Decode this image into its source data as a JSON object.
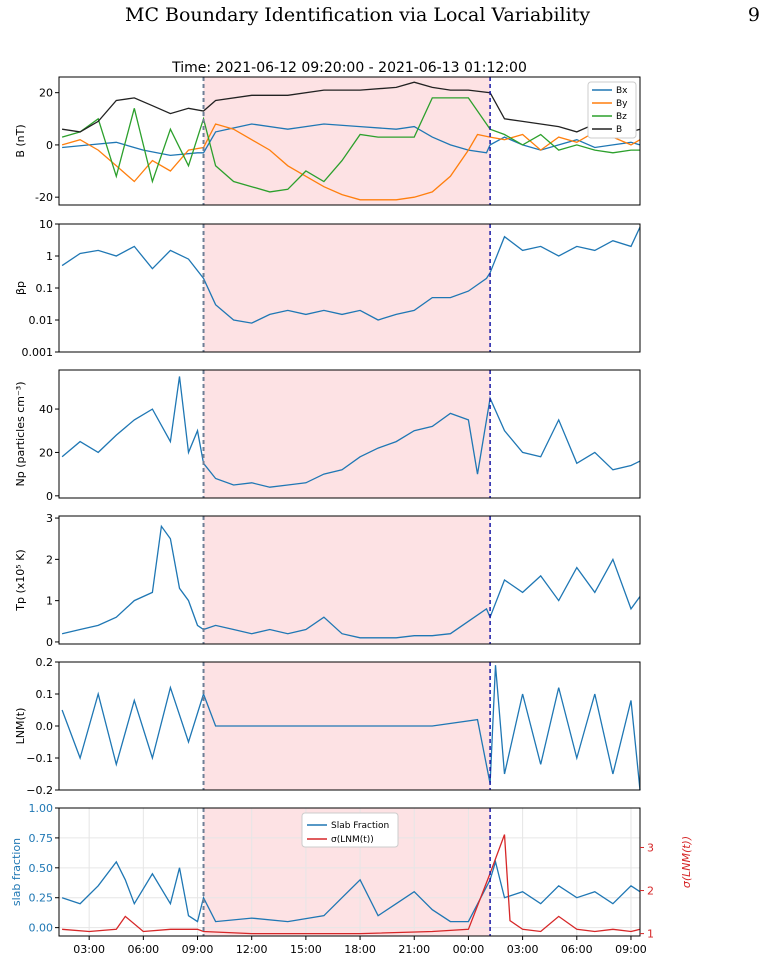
{
  "page": {
    "title": "MC Boundary Identification via Local Variability",
    "number": "9"
  },
  "chart_data": [
    {
      "type": "line",
      "title": "Time: 2021-06-12 09:20:00 - 2021-06-13 01:12:00",
      "ylabel": "B (nT)",
      "ylim": [
        -23,
        26
      ],
      "yticks": [
        20,
        0,
        -20
      ],
      "legend": {
        "placement": "top-right",
        "entries": [
          "Bx",
          "By",
          "Bz",
          "B"
        ]
      },
      "series": [
        {
          "name": "Bx",
          "color": "#1f77b4",
          "x": [
            1.5,
            3,
            4.5,
            6,
            7.5,
            9,
            9.33,
            10,
            12,
            14,
            16,
            18,
            20,
            21,
            22,
            23,
            24,
            25,
            25.2,
            26,
            27,
            28,
            29,
            30,
            31,
            32,
            33,
            33.5
          ],
          "y": [
            -1,
            0,
            1,
            -2,
            -4,
            -3,
            -3,
            5,
            8,
            6,
            8,
            7,
            6,
            7,
            3,
            0,
            -2,
            -3,
            0,
            3,
            0,
            -2,
            0,
            2,
            -1,
            0,
            1,
            0
          ]
        },
        {
          "name": "By",
          "color": "#ff7f0e",
          "x": [
            1.5,
            2.5,
            3.5,
            4.5,
            5.5,
            6.5,
            7.5,
            8.5,
            9.33,
            10,
            11,
            12,
            13,
            14,
            15,
            16,
            17,
            18,
            19,
            20,
            21,
            22,
            23,
            24,
            24.5,
            25.2,
            26,
            27,
            28,
            29,
            30,
            31,
            32,
            33,
            33.5
          ],
          "y": [
            0,
            2,
            -2,
            -8,
            -14,
            -6,
            -10,
            -2,
            -1,
            8,
            6,
            2,
            -2,
            -8,
            -12,
            -16,
            -19,
            -21,
            -21,
            -21,
            -20,
            -18,
            -12,
            -2,
            4,
            3,
            2,
            4,
            -2,
            3,
            1,
            5,
            3,
            0,
            2
          ]
        },
        {
          "name": "Bz",
          "color": "#2ca02c",
          "x": [
            1.5,
            2.5,
            3.5,
            4.5,
            5.5,
            6.5,
            7.5,
            8.5,
            9.33,
            10,
            11,
            12,
            13,
            14,
            15,
            16,
            17,
            18,
            19,
            20,
            21,
            22,
            23,
            24,
            25.2,
            26,
            27,
            28,
            29,
            30,
            31,
            32,
            33,
            33.5
          ],
          "y": [
            3,
            5,
            10,
            -12,
            14,
            -14,
            6,
            -8,
            10,
            -8,
            -14,
            -16,
            -18,
            -17,
            -10,
            -14,
            -6,
            4,
            3,
            3,
            3,
            18,
            18,
            18,
            6,
            4,
            0,
            4,
            -2,
            0,
            -2,
            -3,
            -2,
            -2
          ]
        },
        {
          "name": "B",
          "color": "#222222",
          "x": [
            1.5,
            2.5,
            3.5,
            4.5,
            5.5,
            6.5,
            7.5,
            8.5,
            9.33,
            10,
            12,
            14,
            16,
            18,
            20,
            21,
            22,
            23,
            24,
            25.2,
            26,
            27,
            28,
            29,
            30,
            31,
            32,
            33,
            33.5
          ],
          "y": [
            6,
            5,
            9,
            17,
            18,
            15,
            12,
            14,
            13,
            17,
            19,
            19,
            21,
            21,
            22,
            24,
            22,
            21,
            21,
            20,
            10,
            9,
            8,
            7,
            5,
            8,
            6,
            5,
            6
          ]
        }
      ]
    },
    {
      "type": "line",
      "ylabel": "βp",
      "yscale": "log",
      "ylim": [
        0.001,
        10
      ],
      "yticks": [
        "10",
        "1",
        "0.1",
        "0.01",
        "0.001"
      ],
      "series": [
        {
          "color": "#1f77b4",
          "x": [
            1.5,
            2.5,
            3.5,
            4.5,
            5.5,
            6.5,
            7.5,
            8.5,
            9.33,
            10,
            11,
            12,
            13,
            14,
            15,
            16,
            17,
            18,
            19,
            20,
            21,
            22,
            23,
            24,
            25,
            25.2,
            26,
            27,
            28,
            29,
            30,
            31,
            32,
            33,
            33.5
          ],
          "y": [
            0.5,
            1.2,
            1.5,
            1.0,
            2.0,
            0.4,
            1.5,
            0.8,
            0.2,
            0.03,
            0.01,
            0.008,
            0.015,
            0.02,
            0.015,
            0.02,
            0.015,
            0.02,
            0.01,
            0.015,
            0.02,
            0.05,
            0.05,
            0.08,
            0.2,
            0.3,
            4,
            1.5,
            2,
            1,
            2,
            1.5,
            3,
            2,
            8
          ]
        }
      ]
    },
    {
      "type": "line",
      "ylabel": "Np (particles cm⁻³)",
      "ylim": [
        -1,
        58
      ],
      "yticks": [
        40,
        20,
        0
      ],
      "series": [
        {
          "color": "#1f77b4",
          "x": [
            1.5,
            2.5,
            3.5,
            4.5,
            5.5,
            6.5,
            7.5,
            8,
            8.5,
            9,
            9.33,
            10,
            11,
            12,
            13,
            14,
            15,
            16,
            17,
            18,
            19,
            20,
            21,
            22,
            23,
            24,
            24.5,
            25.2,
            26,
            27,
            28,
            29,
            30,
            31,
            32,
            33,
            33.5
          ],
          "y": [
            18,
            25,
            20,
            28,
            35,
            40,
            25,
            55,
            20,
            30,
            15,
            8,
            5,
            6,
            4,
            5,
            6,
            10,
            12,
            18,
            22,
            25,
            30,
            32,
            38,
            35,
            10,
            45,
            30,
            20,
            18,
            35,
            15,
            20,
            12,
            14,
            16
          ]
        }
      ]
    },
    {
      "type": "line",
      "ylabel": "Tp (x10⁵ K)",
      "ylim": [
        -0.05,
        3.05
      ],
      "yticks": [
        3,
        2,
        1,
        0
      ],
      "series": [
        {
          "color": "#1f77b4",
          "x": [
            1.5,
            2.5,
            3.5,
            4.5,
            5.5,
            6.5,
            7,
            7.5,
            8,
            8.5,
            9,
            9.33,
            10,
            11,
            12,
            13,
            14,
            15,
            16,
            17,
            18,
            19,
            20,
            21,
            22,
            23,
            24,
            25,
            25.2,
            26,
            27,
            28,
            29,
            30,
            31,
            32,
            33,
            33.5
          ],
          "y": [
            0.2,
            0.3,
            0.4,
            0.6,
            1.0,
            1.2,
            2.8,
            2.5,
            1.3,
            1.0,
            0.4,
            0.3,
            0.4,
            0.3,
            0.2,
            0.3,
            0.2,
            0.3,
            0.6,
            0.2,
            0.1,
            0.1,
            0.1,
            0.15,
            0.15,
            0.2,
            0.5,
            0.8,
            0.6,
            1.5,
            1.2,
            1.6,
            1.0,
            1.8,
            1.2,
            2.0,
            0.8,
            1.1
          ]
        }
      ]
    },
    {
      "type": "line",
      "ylabel": "LNM(t)",
      "ylim": [
        -0.2,
        0.2
      ],
      "yticks": [
        "0.2",
        "0.1",
        "0.0",
        "−0.1",
        "−0.2"
      ],
      "series": [
        {
          "color": "#1f77b4",
          "x": [
            1.5,
            2.5,
            3.5,
            4.5,
            5.5,
            6.5,
            7.5,
            8.5,
            9.33,
            10,
            14,
            18,
            22,
            24.5,
            25.2,
            25.5,
            26,
            27,
            28,
            29,
            30,
            31,
            32,
            33,
            33.5
          ],
          "y": [
            0.05,
            -0.1,
            0.1,
            -0.12,
            0.08,
            -0.1,
            0.12,
            -0.05,
            0.1,
            0.0,
            0.0,
            0.0,
            0.0,
            0.02,
            -0.18,
            0.19,
            -0.15,
            0.1,
            -0.12,
            0.12,
            -0.1,
            0.1,
            -0.15,
            0.08,
            -0.2
          ]
        }
      ]
    },
    {
      "type": "line",
      "ylabel": "slab fraction",
      "ylabel_right": "σ(LNM(t))",
      "ylim": [
        -0.07,
        1.0
      ],
      "yticks": [
        "1.00",
        "0.75",
        "0.50",
        "0.25",
        "0.00"
      ],
      "yticks_right": [
        "3",
        "2",
        "1"
      ],
      "legend": {
        "placement": "top-center",
        "entries": [
          "Slab Fraction",
          "σ(LNM(t))"
        ]
      },
      "xticks": [
        "03:00",
        "06:00",
        "09:00",
        "12:00",
        "15:00",
        "18:00",
        "21:00",
        "00:00",
        "03:00",
        "06:00",
        "09:00"
      ],
      "series": [
        {
          "name": "Slab Fraction",
          "color": "#1f77b4",
          "x": [
            1.5,
            2.5,
            3.5,
            4.5,
            5,
            5.5,
            6.5,
            7.5,
            8,
            8.5,
            9,
            9.33,
            10,
            12,
            14,
            16,
            17,
            18,
            19,
            20,
            21,
            22,
            23,
            24,
            25.2,
            25.5,
            26,
            27,
            28,
            29,
            30,
            31,
            32,
            33,
            33.5
          ],
          "y": [
            0.25,
            0.2,
            0.35,
            0.55,
            0.4,
            0.2,
            0.45,
            0.2,
            0.5,
            0.1,
            0.05,
            0.25,
            0.05,
            0.08,
            0.05,
            0.1,
            0.25,
            0.4,
            0.1,
            0.2,
            0.3,
            0.15,
            0.05,
            0.05,
            0.4,
            0.55,
            0.25,
            0.3,
            0.2,
            0.35,
            0.25,
            0.3,
            0.2,
            0.35,
            0.3
          ]
        },
        {
          "name": "σ(LNM(t))",
          "color": "#d62728",
          "x": [
            1.5,
            3,
            4.5,
            5,
            6,
            7.5,
            9,
            9.33,
            12,
            18,
            22,
            24,
            25.2,
            26,
            26.3,
            27,
            28,
            29,
            30,
            31,
            32,
            33,
            33.5
          ],
          "y": [
            1.1,
            1.05,
            1.1,
            1.4,
            1.05,
            1.1,
            1.1,
            1.05,
            1.0,
            1.0,
            1.05,
            1.1,
            2.4,
            3.3,
            1.3,
            1.1,
            1.05,
            1.4,
            1.1,
            1.05,
            1.1,
            1.05,
            1.1
          ]
        }
      ]
    }
  ],
  "annotations": {
    "shade_start_hours": 9.333,
    "shade_end_hours": 25.2
  }
}
